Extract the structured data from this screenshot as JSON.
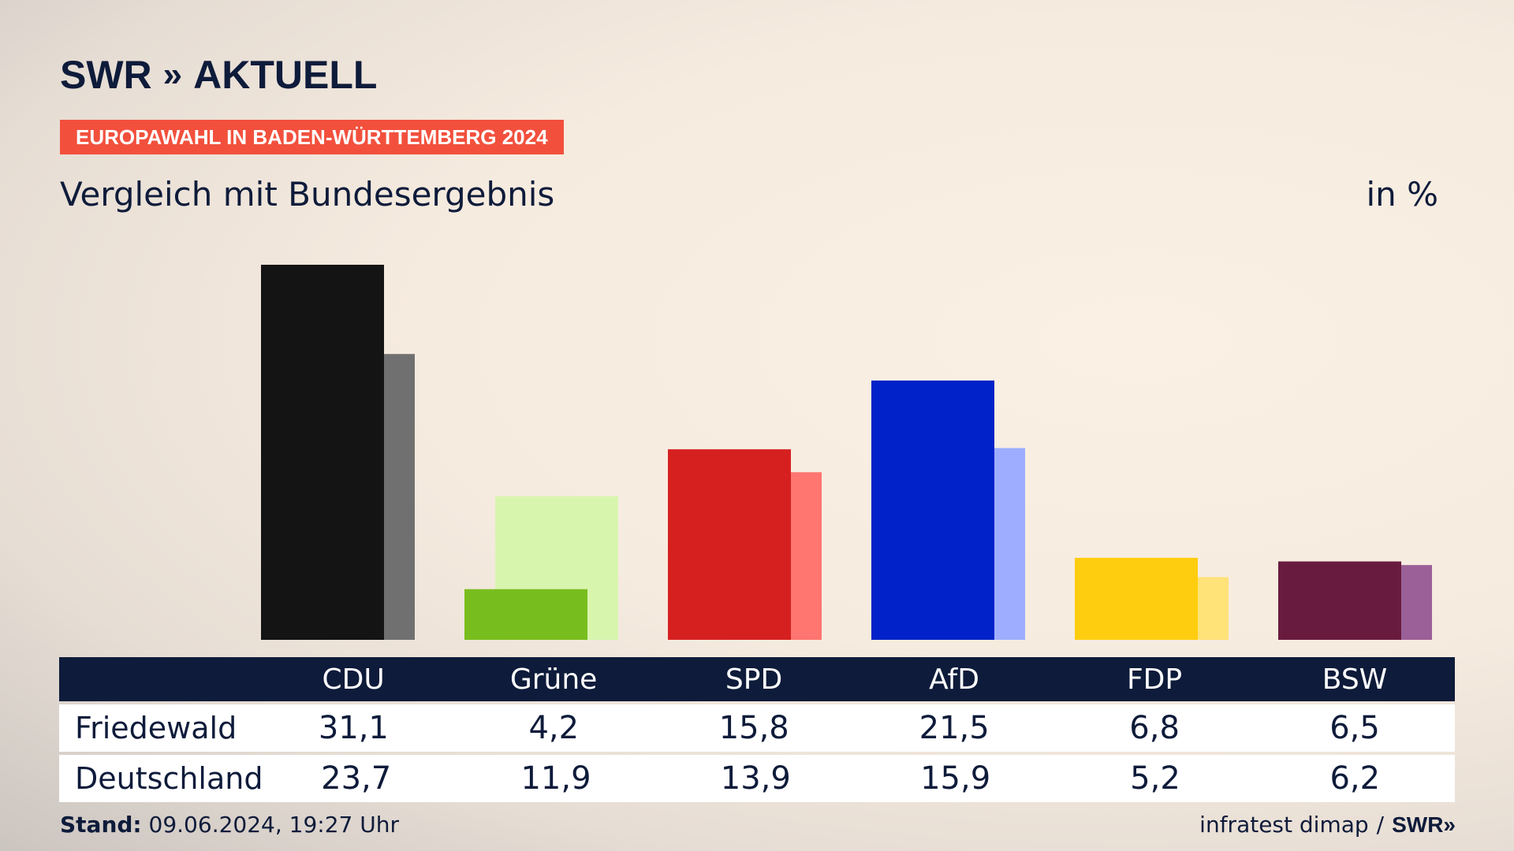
{
  "logo": {
    "text": "SWR",
    "chevrons": "»",
    "suffix": "AKTUELL"
  },
  "tag": "EUROPAWAHL IN BADEN-WÜRTTEMBERG 2024",
  "subtitle": "Vergleich mit Bundesergebnis",
  "unit": "in %",
  "footer": {
    "stand_label": "Stand:",
    "stand_value": "09.06.2024, 19:27 Uhr",
    "source": "infratest dimap",
    "separator": "/",
    "brand": "SWR»"
  },
  "chart_data": {
    "type": "bar",
    "title": "Vergleich mit Bundesergebnis",
    "unit": "in %",
    "categories": [
      "CDU",
      "Grüne",
      "SPD",
      "AfD",
      "FDP",
      "BSW"
    ],
    "series": [
      {
        "name": "Friedewald",
        "values": [
          31.1,
          4.2,
          15.8,
          21.5,
          6.8,
          6.5
        ]
      },
      {
        "name": "Deutschland",
        "values": [
          23.7,
          11.9,
          13.9,
          15.9,
          5.2,
          6.2
        ]
      }
    ],
    "values_text": {
      "Friedewald": [
        "31,1",
        "4,2",
        "15,8",
        "21,5",
        "6,8",
        "6,5"
      ],
      "Deutschland": [
        "23,7",
        "11,9",
        "13,9",
        "15,9",
        "5,2",
        "6,2"
      ]
    },
    "colors_primary": [
      "#141414",
      "#78bd1e",
      "#d62020",
      "#0022c8",
      "#ffcd0f",
      "#691b3f"
    ],
    "colors_secondary": [
      "#707070",
      "#d8f5ae",
      "#ff7570",
      "#9eadff",
      "#ffe278",
      "#9b6097"
    ],
    "ylim": [
      0,
      31.1
    ],
    "grid": false,
    "legend": "table-below"
  }
}
